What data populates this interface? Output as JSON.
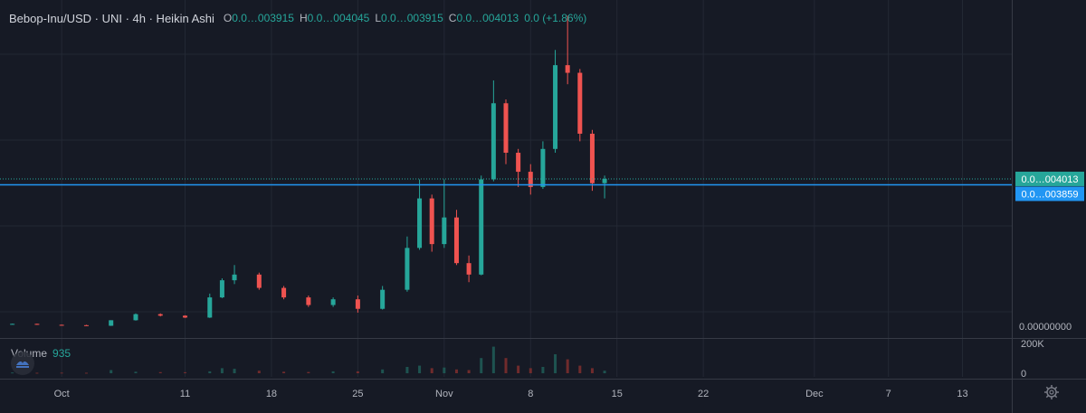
{
  "header": {
    "symbol_title": "Bebop-Inu/USD · UNI · 4h · Heikin Ashi",
    "open_key": "O",
    "open_value": "0.0…003915",
    "high_key": "H",
    "high_value": "0.0…004045",
    "low_key": "L",
    "low_value": "0.0…003915",
    "close_key": "C",
    "close_value": "0.0…004013",
    "change": "0.0 (+1.86%)"
  },
  "volume_legend": {
    "label": "Volume",
    "value": "935"
  },
  "price_scale": {
    "last_price_label": "0.0…004013",
    "line_label": "0.0…003859",
    "zero_label": "0.00000000",
    "volume_ticks": [
      "200K",
      "0"
    ]
  },
  "time_axis": {
    "labels": [
      "Oct",
      "11",
      "18",
      "25",
      "Nov",
      "8",
      "15",
      "22",
      "Dec",
      "7",
      "13"
    ]
  },
  "colors": {
    "background": "#161a25",
    "up": "#26a69a",
    "down": "#ef5350",
    "grid": "#232834",
    "price_line": "#2196f3",
    "last_price_bg": "#26a69a",
    "line_label_bg": "#2196f3"
  },
  "icons": {
    "logo": "tradingview-logo-icon",
    "settings": "gear-icon"
  },
  "chart_data": {
    "type": "candlestick",
    "title": "Bebop-Inu/USD · UNI · 4h · Heikin Ashi",
    "price_unit": "USD (×1e-9)",
    "xlabel": "",
    "ylabel": "",
    "ylim": [
      0,
      8000
    ],
    "volume_ylim": [
      0,
      250000
    ],
    "grid": true,
    "x_ticks": [
      "Oct",
      "11",
      "18",
      "25",
      "Nov",
      "8",
      "15",
      "22",
      "Dec",
      "7",
      "13"
    ],
    "last_close": 4013,
    "price_line": 3859,
    "candles": [
      {
        "t": "Sep 27",
        "o": 200,
        "h": 210,
        "l": 195,
        "c": 205,
        "v": 6000
      },
      {
        "t": "Sep 29",
        "o": 205,
        "h": 210,
        "l": 180,
        "c": 180,
        "v": 4000
      },
      {
        "t": "Oct 1",
        "o": 180,
        "h": 185,
        "l": 170,
        "c": 170,
        "v": 5000
      },
      {
        "t": "Oct 3",
        "o": 170,
        "h": 180,
        "l": 150,
        "c": 155,
        "v": 4000
      },
      {
        "t": "Oct 5",
        "o": 155,
        "h": 300,
        "l": 150,
        "c": 300,
        "v": 25000
      },
      {
        "t": "Oct 7",
        "o": 300,
        "h": 480,
        "l": 290,
        "c": 460,
        "v": 12000
      },
      {
        "t": "Oct 9",
        "o": 460,
        "h": 480,
        "l": 400,
        "c": 420,
        "v": 9000
      },
      {
        "t": "Oct 11",
        "o": 420,
        "h": 430,
        "l": 360,
        "c": 370,
        "v": 8000
      },
      {
        "t": "Oct 13",
        "o": 370,
        "h": 1000,
        "l": 360,
        "c": 900,
        "v": 15000
      },
      {
        "t": "Oct 14",
        "o": 900,
        "h": 1400,
        "l": 880,
        "c": 1350,
        "v": 40000
      },
      {
        "t": "Oct 15",
        "o": 1350,
        "h": 1750,
        "l": 1250,
        "c": 1500,
        "v": 35000
      },
      {
        "t": "Oct 17",
        "o": 1500,
        "h": 1550,
        "l": 1100,
        "c": 1150,
        "v": 20000
      },
      {
        "t": "Oct 19",
        "o": 1150,
        "h": 1200,
        "l": 850,
        "c": 900,
        "v": 12000
      },
      {
        "t": "Oct 21",
        "o": 900,
        "h": 950,
        "l": 650,
        "c": 700,
        "v": 10000
      },
      {
        "t": "Oct 23",
        "o": 700,
        "h": 900,
        "l": 650,
        "c": 850,
        "v": 15000
      },
      {
        "t": "Oct 25",
        "o": 850,
        "h": 950,
        "l": 500,
        "c": 600,
        "v": 15000
      },
      {
        "t": "Oct 27",
        "o": 600,
        "h": 1200,
        "l": 580,
        "c": 1100,
        "v": 30000
      },
      {
        "t": "Oct 29",
        "o": 1100,
        "h": 2500,
        "l": 1050,
        "c": 2200,
        "v": 50000
      },
      {
        "t": "Oct 30",
        "o": 2200,
        "h": 4000,
        "l": 2150,
        "c": 3500,
        "v": 60000
      },
      {
        "t": "Oct 31",
        "o": 3500,
        "h": 3600,
        "l": 2100,
        "c": 2300,
        "v": 40000
      },
      {
        "t": "Nov 1",
        "o": 2300,
        "h": 4000,
        "l": 2200,
        "c": 3000,
        "v": 45000
      },
      {
        "t": "Nov 2",
        "o": 3000,
        "h": 3200,
        "l": 1750,
        "c": 1800,
        "v": 30000
      },
      {
        "t": "Nov 3",
        "o": 1800,
        "h": 2000,
        "l": 1300,
        "c": 1500,
        "v": 25000
      },
      {
        "t": "Nov 4",
        "o": 1500,
        "h": 4100,
        "l": 1480,
        "c": 4000,
        "v": 120000
      },
      {
        "t": "Nov 5",
        "o": 4000,
        "h": 6600,
        "l": 3950,
        "c": 6000,
        "v": 210000
      },
      {
        "t": "Nov 6",
        "o": 6000,
        "h": 6100,
        "l": 4400,
        "c": 4700,
        "v": 120000
      },
      {
        "t": "Nov 7",
        "o": 4700,
        "h": 4800,
        "l": 3800,
        "c": 4200,
        "v": 60000
      },
      {
        "t": "Nov 8",
        "o": 4200,
        "h": 4400,
        "l": 3600,
        "c": 3800,
        "v": 40000
      },
      {
        "t": "Nov 9",
        "o": 3800,
        "h": 5000,
        "l": 3750,
        "c": 4800,
        "v": 50000
      },
      {
        "t": "Nov 10",
        "o": 4800,
        "h": 7400,
        "l": 4700,
        "c": 7000,
        "v": 150000
      },
      {
        "t": "Nov 11",
        "o": 7000,
        "h": 8300,
        "l": 6500,
        "c": 6800,
        "v": 110000
      },
      {
        "t": "Nov 12",
        "o": 6800,
        "h": 6900,
        "l": 5000,
        "c": 5200,
        "v": 60000
      },
      {
        "t": "Nov 13",
        "o": 5200,
        "h": 5300,
        "l": 3700,
        "c": 3900,
        "v": 40000
      },
      {
        "t": "Nov 14",
        "o": 3900,
        "h": 4100,
        "l": 3500,
        "c": 4013,
        "v": 20000
      }
    ]
  }
}
